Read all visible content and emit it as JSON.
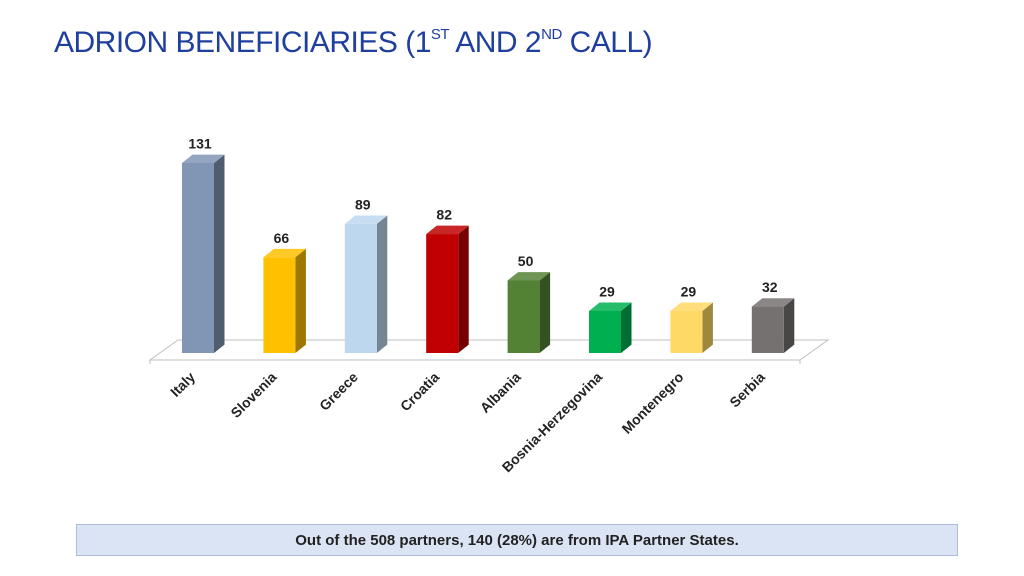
{
  "title": {
    "prefix": "ADRION BENEFICIARIES (1",
    "sup1": "ST",
    "middle": " AND 2",
    "sup2": "ND",
    "suffix": " CALL)"
  },
  "footnote": "Out of the 508 partners, 140 (28%) are from IPA Partner States.",
  "chart_data": {
    "type": "bar",
    "categories": [
      "Italy",
      "Slovenia",
      "Greece",
      "Croatia",
      "Albania",
      "Bosnia-Herzegovina",
      "Montenegro",
      "Serbia"
    ],
    "values": [
      131,
      66,
      89,
      82,
      50,
      29,
      29,
      32
    ],
    "colors": [
      "#8196b4",
      "#ffc000",
      "#bdd7ee",
      "#c00000",
      "#548235",
      "#00b050",
      "#ffd966",
      "#767171"
    ],
    "data_labels": true,
    "ylim": [
      0,
      140
    ],
    "grid": false,
    "legend": "none"
  }
}
